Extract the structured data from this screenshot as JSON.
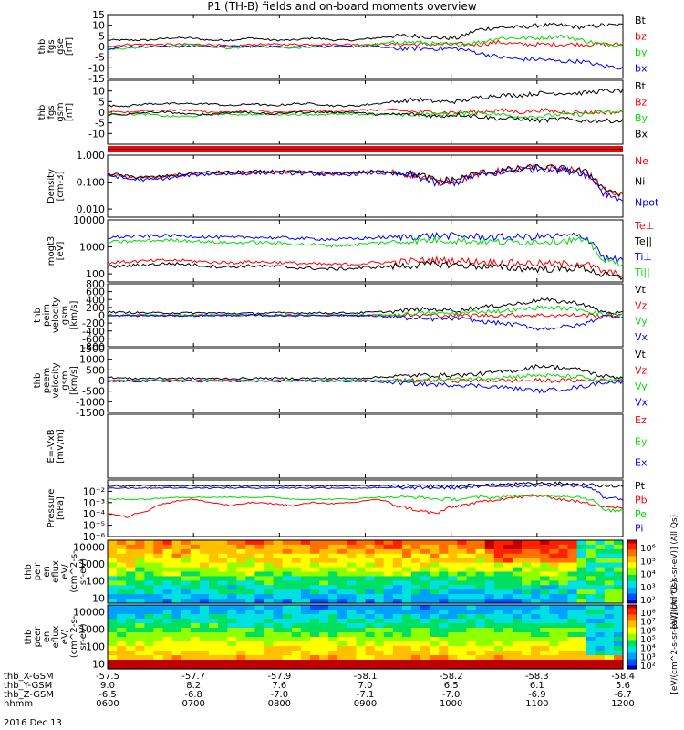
{
  "title": "P1 (TH-B) fields and on-board moments overview",
  "date": "2016 Dec 13",
  "colors": {
    "black": "#000000",
    "red": "#ff0000",
    "green": "#00dd00",
    "blue": "#0000ff"
  },
  "ephemeris": {
    "rows": [
      {
        "label": "thb_X-GSM",
        "values": [
          "-57.5",
          "-57.7",
          "-57.9",
          "-58.1",
          "-58.2",
          "-58.3",
          "-58.4"
        ]
      },
      {
        "label": "thb_Y-GSM",
        "values": [
          "9.0",
          "8.2",
          "7.6",
          "7.0",
          "6.5",
          "6.1",
          "5.6"
        ]
      },
      {
        "label": "thb_Z-GSM",
        "values": [
          "-6.5",
          "-6.8",
          "-7.0",
          "-7.1",
          "-7.0",
          "-6.9",
          "-6.7"
        ]
      },
      {
        "label": "hhmm",
        "values": [
          "0600",
          "0700",
          "0800",
          "0900",
          "1000",
          "1100",
          "1200"
        ]
      }
    ]
  },
  "chart_data": [
    {
      "type": "line",
      "id": "fgs_gse",
      "ylabel": [
        "thb",
        "fgs",
        "gse",
        "[nT]"
      ],
      "ylim": [
        -15,
        15
      ],
      "yticks": [
        "15",
        "10",
        "5",
        "0",
        "-5",
        "-10",
        "-15"
      ],
      "series": [
        {
          "name": "Bt",
          "color": "#000000",
          "values": [
            3,
            3,
            3,
            4,
            4,
            3,
            3,
            4,
            3,
            3,
            4,
            3,
            3,
            4,
            5,
            5,
            4,
            4,
            8,
            9,
            9,
            10,
            10,
            9,
            10,
            10
          ]
        },
        {
          "name": "bz",
          "color": "#ff0000",
          "values": [
            0,
            1,
            1,
            1,
            1,
            1,
            0,
            1,
            1,
            1,
            1,
            1,
            1,
            1,
            1,
            1,
            1,
            1,
            1,
            2,
            1,
            1,
            1,
            1,
            1,
            1
          ]
        },
        {
          "name": "by",
          "color": "#00dd00",
          "values": [
            -1,
            -1,
            0,
            0,
            1,
            0,
            -1,
            0,
            0,
            -1,
            0,
            0,
            0,
            1,
            2,
            2,
            1,
            1,
            2,
            4,
            4,
            4,
            5,
            3,
            1,
            1
          ]
        },
        {
          "name": "bx",
          "color": "#0000ff",
          "values": [
            -1,
            0,
            0,
            0,
            0,
            0,
            0,
            0,
            0,
            0,
            0,
            0,
            0,
            0,
            -1,
            -1,
            -1,
            -1,
            -3,
            -5,
            -6,
            -6,
            -7,
            -7,
            -9,
            -10
          ]
        }
      ]
    },
    {
      "type": "line",
      "id": "fgs_gsm",
      "ylabel": [
        "thb",
        "fgs",
        "gsm",
        "[nT]"
      ],
      "ylim": [
        -15,
        15
      ],
      "yticks": [
        "10",
        "5",
        "0",
        "-5",
        "-10"
      ],
      "series": [
        {
          "name": "Bt",
          "color": "#000000",
          "values": [
            3,
            3,
            4,
            4,
            4,
            4,
            3,
            4,
            3,
            4,
            4,
            3,
            3,
            4,
            5,
            6,
            5,
            5,
            7,
            8,
            8,
            9,
            9,
            9,
            10,
            10
          ]
        },
        {
          "name": "Bz",
          "color": "#ff0000",
          "values": [
            0,
            0,
            1,
            1,
            1,
            0,
            0,
            1,
            0,
            0,
            1,
            0,
            1,
            1,
            1,
            0,
            0,
            0,
            0,
            1,
            0,
            1,
            0,
            0,
            0,
            0
          ]
        },
        {
          "name": "By",
          "color": "#00dd00",
          "values": [
            -1,
            -1,
            -1,
            -2,
            -2,
            -1,
            -1,
            -1,
            -1,
            -1,
            -1,
            -1,
            -1,
            -1,
            -1,
            -1,
            -1,
            -1,
            0,
            -1,
            -2,
            -2,
            -1,
            -1,
            0,
            0
          ]
        },
        {
          "name": "Bx",
          "color": "#000000",
          "values": [
            -1,
            -1,
            0,
            0,
            -1,
            -1,
            0,
            0,
            -1,
            0,
            0,
            0,
            0,
            -1,
            -1,
            -1,
            -2,
            -1,
            -2,
            -3,
            -3,
            -4,
            -3,
            -4,
            -4,
            -4
          ]
        }
      ]
    },
    {
      "type": "line",
      "id": "density",
      "ylabel": [
        "Density",
        "[cm-3]"
      ],
      "yscale": "log",
      "ylim": [
        0.005,
        1.0
      ],
      "yticks": [
        "1.000",
        "0.100",
        "0.010"
      ],
      "series": [
        {
          "name": "Ne",
          "color": "#ff0000",
          "values": [
            0.2,
            0.15,
            0.14,
            0.16,
            0.2,
            0.22,
            0.22,
            0.23,
            0.24,
            0.23,
            0.22,
            0.2,
            0.22,
            0.24,
            0.22,
            0.18,
            0.1,
            0.12,
            0.2,
            0.25,
            0.3,
            0.35,
            0.3,
            0.25,
            0.05,
            0.03
          ]
        },
        {
          "name": "Ni",
          "color": "#000000",
          "values": [
            0.21,
            0.16,
            0.15,
            0.17,
            0.21,
            0.23,
            0.23,
            0.24,
            0.25,
            0.24,
            0.23,
            0.21,
            0.23,
            0.25,
            0.23,
            0.19,
            0.11,
            0.13,
            0.21,
            0.26,
            0.31,
            0.36,
            0.31,
            0.26,
            0.06,
            0.03
          ]
        },
        {
          "name": "Npot",
          "color": "#0000ff",
          "values": [
            0.18,
            0.13,
            0.12,
            0.14,
            0.18,
            0.2,
            0.2,
            0.21,
            0.22,
            0.21,
            0.2,
            0.18,
            0.2,
            0.22,
            0.2,
            0.16,
            0.08,
            0.1,
            0.18,
            0.22,
            0.28,
            0.32,
            0.28,
            0.22,
            0.04,
            0.02
          ]
        }
      ]
    },
    {
      "type": "line",
      "id": "temperature",
      "ylabel": [
        "mogt3",
        "[eV]"
      ],
      "yscale": "log",
      "ylim": [
        50,
        10000
      ],
      "yticks": [
        "10000",
        "1000",
        "100"
      ],
      "series": [
        {
          "name": "Te⊥",
          "color": "#ff0000",
          "values": [
            260,
            280,
            300,
            320,
            300,
            270,
            260,
            280,
            270,
            250,
            230,
            220,
            230,
            260,
            270,
            300,
            320,
            300,
            280,
            260,
            250,
            240,
            230,
            250,
            120,
            90
          ]
        },
        {
          "name": "Te||",
          "color": "#000000",
          "values": [
            180,
            200,
            220,
            240,
            220,
            190,
            180,
            200,
            190,
            170,
            160,
            150,
            160,
            180,
            190,
            210,
            230,
            210,
            190,
            170,
            160,
            150,
            150,
            170,
            90,
            70
          ]
        },
        {
          "name": "Ti⊥",
          "color": "#0000ff",
          "values": [
            2200,
            2400,
            2500,
            2600,
            2500,
            2300,
            2200,
            2300,
            2200,
            2100,
            2000,
            1900,
            2000,
            2200,
            2300,
            2500,
            2600,
            2500,
            2400,
            2300,
            2300,
            2400,
            2500,
            2600,
            400,
            300
          ]
        },
        {
          "name": "Ti||",
          "color": "#00dd00",
          "values": [
            1500,
            1600,
            1700,
            1800,
            1700,
            1500,
            1400,
            1500,
            1400,
            1300,
            1200,
            1100,
            1200,
            1400,
            1500,
            1700,
            1800,
            1700,
            1600,
            1500,
            1500,
            1600,
            1700,
            1800,
            300,
            250
          ]
        }
      ]
    },
    {
      "type": "line",
      "id": "peim_velocity",
      "ylabel": [
        "thb",
        "peim",
        "velocity",
        "gsm",
        "[km/s]"
      ],
      "ylim": [
        -800,
        800
      ],
      "yticks": [
        "800",
        "600",
        "400",
        "200",
        "0",
        "-200",
        "-400",
        "-600",
        "-800"
      ],
      "series": [
        {
          "name": "Vt",
          "color": "#000000",
          "values": [
            80,
            70,
            60,
            60,
            60,
            60,
            50,
            50,
            60,
            60,
            60,
            60,
            60,
            80,
            100,
            150,
            150,
            120,
            200,
            250,
            300,
            400,
            350,
            300,
            80,
            60
          ]
        },
        {
          "name": "Vz",
          "color": "#ff0000",
          "values": [
            0,
            0,
            0,
            0,
            0,
            0,
            0,
            0,
            0,
            0,
            0,
            0,
            0,
            0,
            0,
            0,
            0,
            0,
            0,
            0,
            0,
            0,
            0,
            0,
            0,
            0
          ]
        },
        {
          "name": "Vy",
          "color": "#00dd00",
          "values": [
            10,
            0,
            0,
            0,
            0,
            0,
            0,
            0,
            0,
            0,
            0,
            0,
            0,
            0,
            20,
            50,
            50,
            40,
            100,
            100,
            150,
            200,
            180,
            150,
            20,
            10
          ]
        },
        {
          "name": "Vx",
          "color": "#0000ff",
          "values": [
            -20,
            -10,
            -10,
            -10,
            -10,
            0,
            0,
            0,
            0,
            -10,
            0,
            0,
            0,
            -20,
            -40,
            -100,
            -100,
            -80,
            -150,
            -200,
            -250,
            -350,
            -300,
            -250,
            -30,
            -20
          ]
        }
      ]
    },
    {
      "type": "line",
      "id": "peem_velocity",
      "ylabel": [
        "thb",
        "peem",
        "velocity",
        "gsm",
        "[km/s]"
      ],
      "ylim": [
        -1500,
        1500
      ],
      "yticks": [
        "1500",
        "1000",
        "500",
        "0",
        "-500",
        "-1000",
        "-1500"
      ],
      "series": [
        {
          "name": "Vt",
          "color": "#000000",
          "values": [
            150,
            100,
            100,
            100,
            100,
            90,
            90,
            100,
            100,
            100,
            100,
            100,
            100,
            150,
            200,
            250,
            250,
            250,
            300,
            400,
            500,
            700,
            600,
            500,
            200,
            150
          ]
        },
        {
          "name": "Vz",
          "color": "#ff0000",
          "values": [
            0,
            0,
            0,
            0,
            0,
            0,
            0,
            0,
            0,
            0,
            0,
            0,
            0,
            0,
            0,
            0,
            0,
            0,
            0,
            0,
            0,
            0,
            0,
            0,
            0,
            0
          ]
        },
        {
          "name": "Vy",
          "color": "#00dd00",
          "values": [
            0,
            0,
            0,
            0,
            0,
            0,
            0,
            0,
            0,
            0,
            0,
            0,
            0,
            0,
            0,
            0,
            50,
            50,
            100,
            150,
            200,
            250,
            200,
            150,
            0,
            0
          ]
        },
        {
          "name": "Vx",
          "color": "#0000ff",
          "values": [
            -50,
            -30,
            -30,
            -30,
            -30,
            -30,
            -30,
            -30,
            -30,
            -30,
            -30,
            -30,
            -30,
            -50,
            -100,
            -150,
            -200,
            -200,
            -250,
            -300,
            -400,
            -500,
            -400,
            -300,
            -80,
            -50
          ]
        }
      ]
    },
    {
      "type": "line",
      "id": "efield",
      "ylabel": [
        "E=-VxB",
        "[mV/m]"
      ],
      "ylim": [
        0,
        1
      ],
      "yticks": [],
      "series": [
        {
          "name": "Ez",
          "color": "#ff0000",
          "values": []
        },
        {
          "name": "Ey",
          "color": "#00dd00",
          "values": []
        },
        {
          "name": "Ex",
          "color": "#0000ff",
          "values": []
        }
      ]
    },
    {
      "type": "line",
      "id": "pressure",
      "ylabel": [
        "Pressure",
        "[nPa]"
      ],
      "yscale": "log",
      "ylim": [
        1e-06,
        0.1
      ],
      "yticks": [
        "10^-2",
        "10^-3",
        "10^-4",
        "10^-5",
        "10^-6"
      ],
      "series": [
        {
          "name": "Pt",
          "color": "#000000",
          "values": [
            0.03,
            0.03,
            0.03,
            0.03,
            0.03,
            0.03,
            0.03,
            0.03,
            0.03,
            0.03,
            0.03,
            0.03,
            0.03,
            0.03,
            0.03,
            0.03,
            0.03,
            0.03,
            0.035,
            0.04,
            0.045,
            0.05,
            0.05,
            0.04,
            0.03,
            0.03
          ]
        },
        {
          "name": "Pb",
          "color": "#ff0000",
          "values": [
            0.0001,
            5e-05,
            0.0002,
            0.001,
            0.002,
            0.001,
            0.0005,
            0.001,
            0.0008,
            0.0005,
            0.001,
            0.0008,
            0.001,
            0.002,
            0.0005,
            0.0002,
            0.0001,
            0.0005,
            0.001,
            0.002,
            0.003,
            0.004,
            0.002,
            0.001,
            0.0005,
            0.0003
          ]
        },
        {
          "name": "Pe",
          "color": "#00dd00",
          "values": [
            0.002,
            0.002,
            0.002,
            0.003,
            0.003,
            0.003,
            0.003,
            0.003,
            0.003,
            0.002,
            0.002,
            0.002,
            0.002,
            0.003,
            0.003,
            0.003,
            0.002,
            0.002,
            0.003,
            0.003,
            0.004,
            0.004,
            0.004,
            0.003,
            0.0002,
            0.0002
          ]
        },
        {
          "name": "Pi",
          "color": "#0000ff",
          "values": [
            0.02,
            0.02,
            0.02,
            0.02,
            0.02,
            0.02,
            0.02,
            0.02,
            0.02,
            0.02,
            0.02,
            0.02,
            0.02,
            0.02,
            0.02,
            0.02,
            0.02,
            0.02,
            0.025,
            0.03,
            0.03,
            0.035,
            0.035,
            0.03,
            0.003,
            0.002
          ]
        }
      ]
    },
    {
      "type": "heatmap",
      "id": "peir_spectrogram",
      "ylabel": [
        "thb",
        "peir",
        "en",
        "eflux",
        "eV/",
        "(cm^2-s-",
        "sr-eV)"
      ],
      "yscale": "log",
      "ylim": [
        5,
        25000
      ],
      "yticks": [
        "10000",
        "1000",
        "100",
        "10"
      ],
      "colorbar": {
        "label": "[eV/(cm^2-s-sr-eV)] (All Qs)",
        "ticks": [
          "10^6",
          "10^5",
          "10^4",
          "10^3",
          "10^2"
        ]
      }
    },
    {
      "type": "heatmap",
      "id": "peer_spectrogram",
      "ylabel": [
        "thb",
        "peer",
        "en",
        "eflux",
        "eV/",
        "(cm^2-s-",
        "sr-eV)"
      ],
      "yscale": "log",
      "ylim": [
        5,
        25000
      ],
      "yticks": [
        "10000",
        "1000",
        "100",
        "10"
      ],
      "colorbar": {
        "label": "[eV/(cm^2-s-sr-eV)] (All Qs)",
        "ticks": [
          "10^8",
          "10^7",
          "10^6",
          "10^5",
          "10^4",
          "10^3",
          "10^2"
        ]
      }
    }
  ]
}
